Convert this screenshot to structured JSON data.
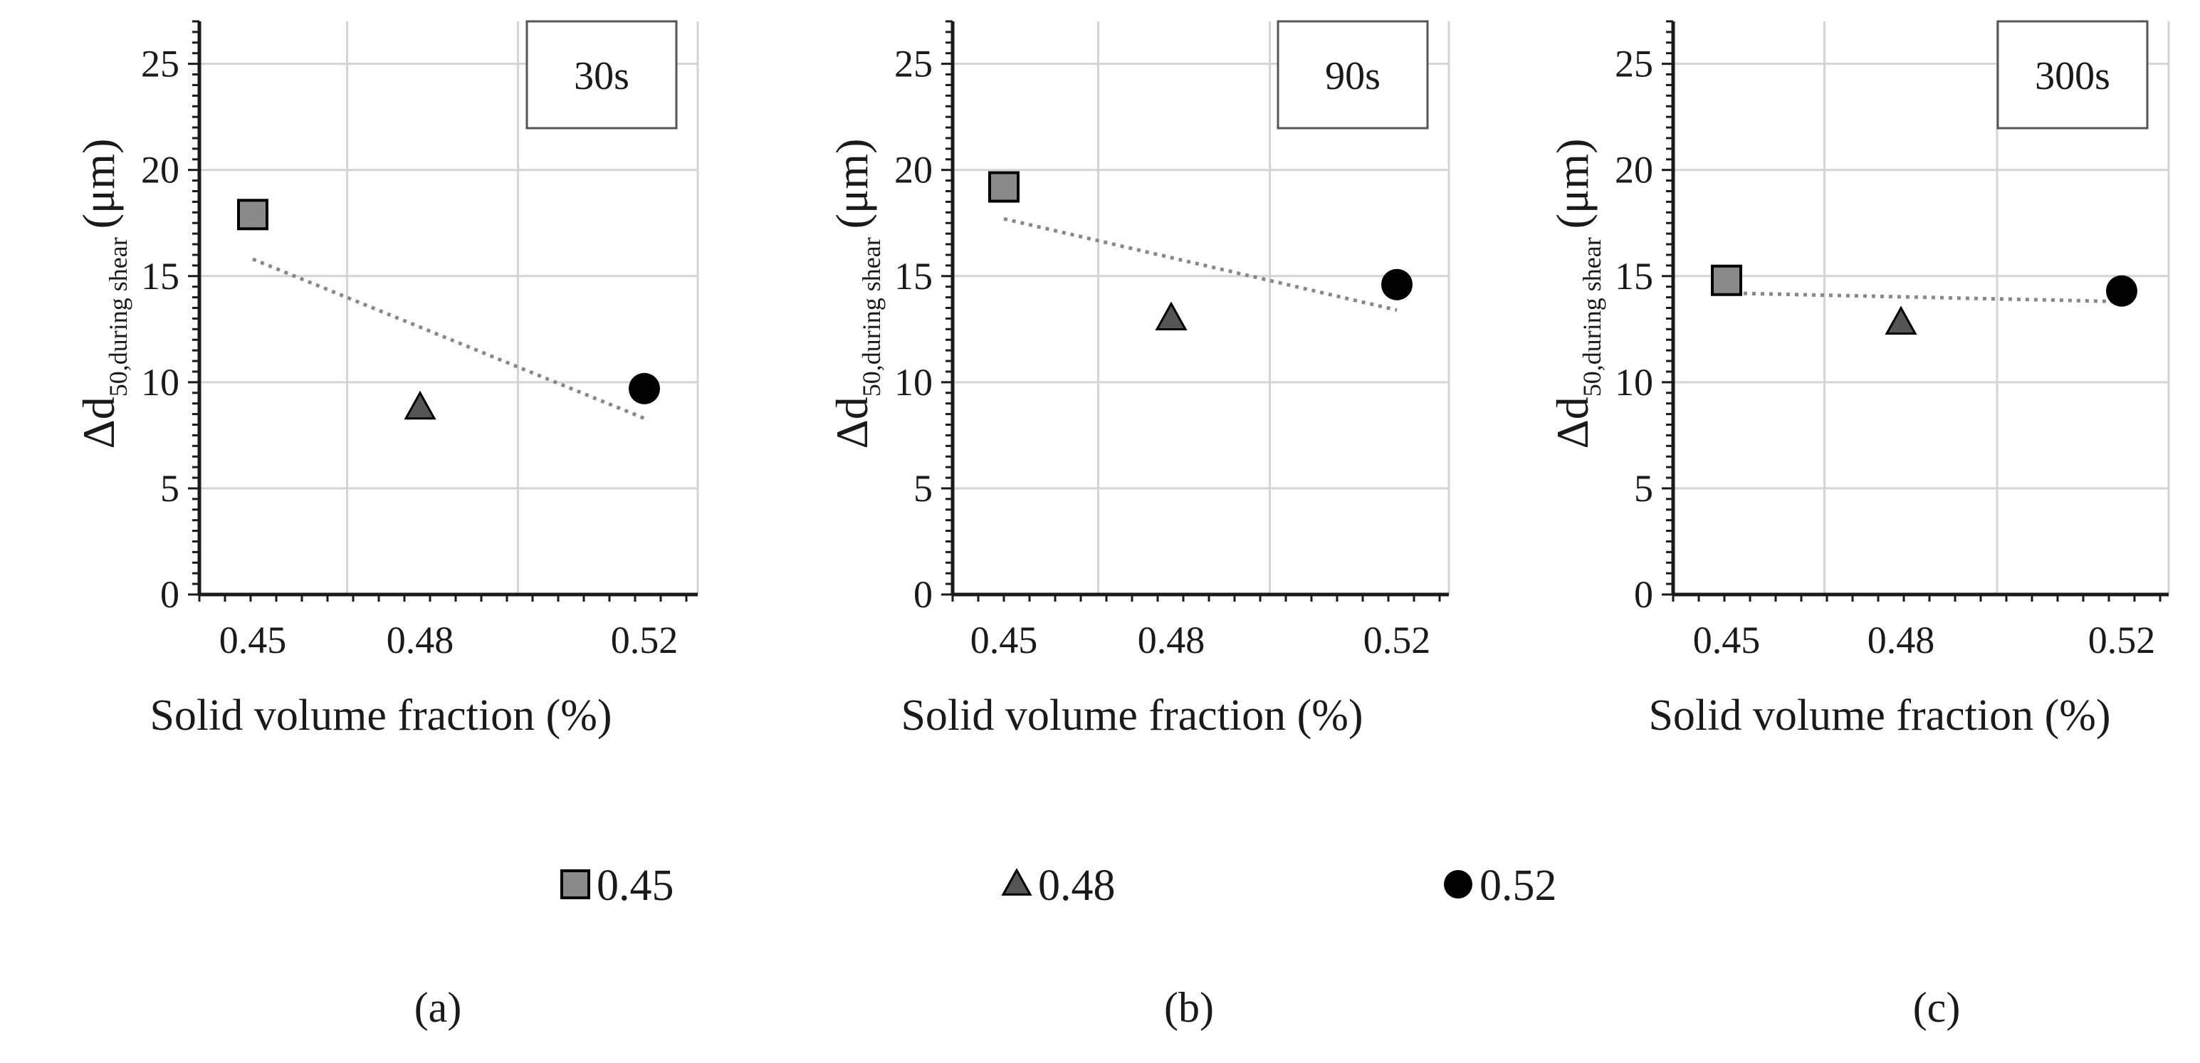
{
  "chart_data": [
    {
      "type": "scatter",
      "panel_label": "(a)",
      "box_label": "30s",
      "xlabel": "Solid volume fraction (%)",
      "ylabel": {
        "main": "Δd",
        "sub": "50,during  shear",
        "unit": "(μm)"
      },
      "categories": [
        "0.45",
        "0.48",
        "0.52"
      ],
      "ylim": [
        0,
        27
      ],
      "yticks": [
        "0",
        "5",
        "10",
        "15",
        "20",
        "25"
      ],
      "series": [
        {
          "name": "0.45",
          "marker": "square",
          "values": [
            17.9
          ]
        },
        {
          "name": "0.48",
          "marker": "triangle",
          "values": [
            8.8
          ]
        },
        {
          "name": "0.52",
          "marker": "circle",
          "values": [
            9.7
          ]
        }
      ],
      "trendline": {
        "style": "dotted",
        "from": 15.8,
        "to": 8.3
      }
    },
    {
      "type": "scatter",
      "panel_label": "(b)",
      "box_label": "90s",
      "xlabel": "Solid volume fraction (%)",
      "ylabel": {
        "main": "Δd",
        "sub": "50,during  shear",
        "unit": "(μm)"
      },
      "categories": [
        "0.45",
        "0.48",
        "0.52"
      ],
      "ylim": [
        0,
        27
      ],
      "yticks": [
        "0",
        "5",
        "10",
        "15",
        "20",
        "25"
      ],
      "series": [
        {
          "name": "0.45",
          "marker": "square",
          "values": [
            19.2
          ]
        },
        {
          "name": "0.48",
          "marker": "triangle",
          "values": [
            13.0
          ]
        },
        {
          "name": "0.52",
          "marker": "circle",
          "values": [
            14.6
          ]
        }
      ],
      "trendline": {
        "style": "dotted",
        "from": 17.7,
        "to": 13.4
      }
    },
    {
      "type": "scatter",
      "panel_label": "(c)",
      "box_label": "300s",
      "xlabel": "Solid volume fraction (%)",
      "ylabel": {
        "main": "Δd",
        "sub": "50,during  shear",
        "unit": "(μm)"
      },
      "categories": [
        "0.45",
        "0.48",
        "0.52"
      ],
      "ylim": [
        0,
        27
      ],
      "yticks": [
        "0",
        "5",
        "10",
        "15",
        "20",
        "25"
      ],
      "series": [
        {
          "name": "0.45",
          "marker": "square",
          "values": [
            14.8
          ]
        },
        {
          "name": "0.48",
          "marker": "triangle",
          "values": [
            12.8
          ]
        },
        {
          "name": "0.52",
          "marker": "circle",
          "values": [
            14.3
          ]
        }
      ],
      "trendline": {
        "style": "dotted",
        "from": 14.2,
        "to": 13.8
      }
    }
  ],
  "legend": [
    {
      "label": "0.45",
      "marker": "square"
    },
    {
      "label": "0.48",
      "marker": "triangle"
    },
    {
      "label": "0.52",
      "marker": "circle"
    }
  ],
  "colors": {
    "square_fill": "#8a8a8a",
    "triangle_fill": "#555555",
    "circle_fill": "#000000",
    "axis": "#1a1a1a",
    "grid": "#d4d4d4",
    "trend": "#888888"
  }
}
